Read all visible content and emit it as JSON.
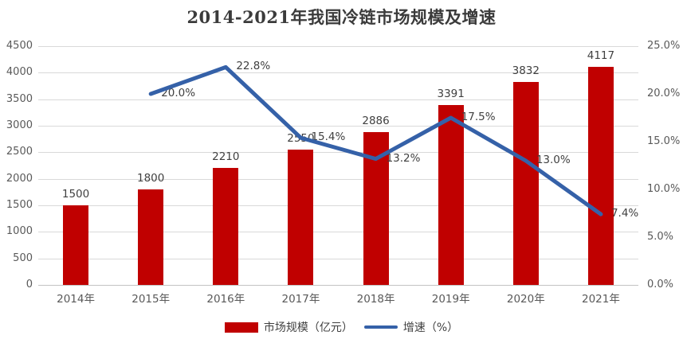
{
  "title": "2014-2021年我国冷链市场规模及增速",
  "legend": {
    "items": [
      {
        "label": "市场规模（亿元）",
        "swatch": "bar",
        "color": "#C00000"
      },
      {
        "label": "增速（%）",
        "swatch": "line",
        "color": "#3561A8"
      }
    ]
  },
  "chart_data": {
    "type": "bar+line",
    "categories": [
      "2014年",
      "2015年",
      "2016年",
      "2017年",
      "2018年",
      "2019年",
      "2020年",
      "2021年"
    ],
    "series": [
      {
        "name": "市场规模（亿元）",
        "type": "bar",
        "axis": "left",
        "color": "#C00000",
        "values": [
          1500,
          1800,
          2210,
          2550,
          2886,
          3391,
          3832,
          4117
        ],
        "data_labels": [
          "1500",
          "1800",
          "2210",
          "2550",
          "2886",
          "3391",
          "3832",
          "4117"
        ]
      },
      {
        "name": "增速（%）",
        "type": "line",
        "axis": "right",
        "color": "#3561A8",
        "values": [
          null,
          20.0,
          22.8,
          15.4,
          13.2,
          17.5,
          13.0,
          7.4
        ],
        "data_labels": [
          null,
          "20.0%",
          "22.8%",
          "15.4%",
          "13.2%",
          "17.5%",
          "13.0%",
          "7.4%"
        ]
      }
    ],
    "left_axis": {
      "min": 0,
      "max": 4500,
      "step": 500,
      "tick_labels": [
        "0",
        "500",
        "1000",
        "1500",
        "2000",
        "2500",
        "3000",
        "3500",
        "4000",
        "4500"
      ]
    },
    "right_axis": {
      "min": 0,
      "max": 25,
      "step": 5,
      "tick_labels": [
        "0.0%",
        "5.0%",
        "10.0%",
        "15.0%",
        "20.0%",
        "25.0%"
      ]
    },
    "grid": true,
    "legend_position": "bottom"
  },
  "colors": {
    "bar": "#C00000",
    "line": "#3561A8",
    "gridline": "#D9D9D9",
    "axis_line": "#C3C3C3",
    "tick_text": "#595959",
    "data_label_text": "#404040",
    "title_text": "#3B3B3B",
    "background": "#FFFFFF"
  }
}
